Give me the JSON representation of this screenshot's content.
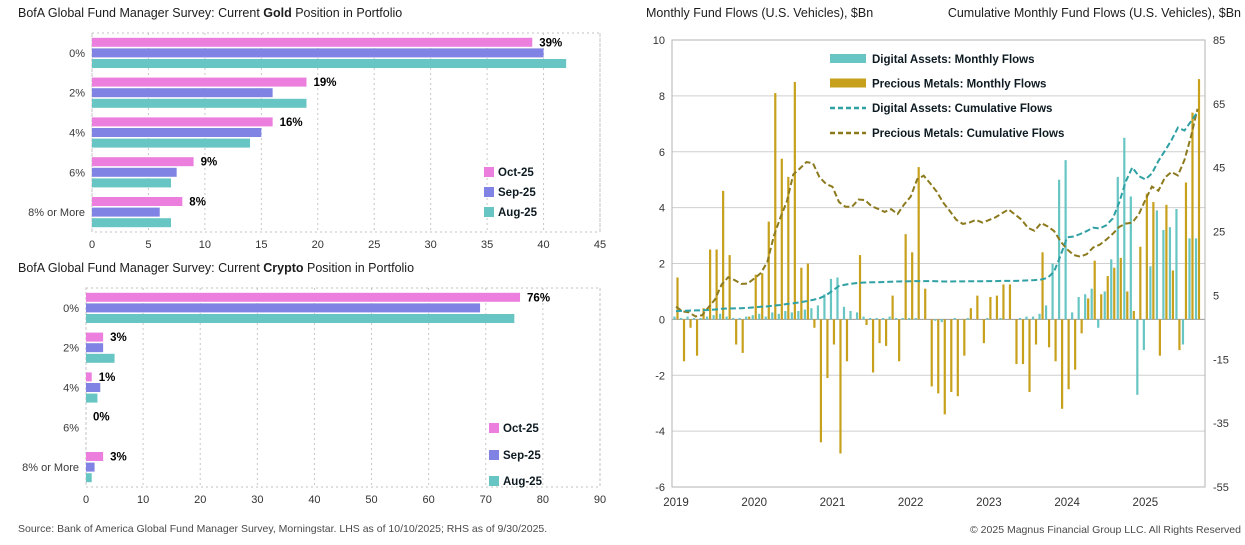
{
  "footer": {
    "source": "Source: Bank of America Global Fund Manager Survey, Morningstar. LHS as of 10/10/2025; RHS as of 9/30/2025.",
    "copyright": "© 2025 Magnus Financial Group LLC. All Rights Reserved"
  },
  "chart_data": [
    {
      "type": "bar",
      "orientation": "horizontal",
      "title_prefix": "BofA Global Fund Manager Survey: Current ",
      "title_bold": "Gold",
      "title_suffix": " Position in Portfolio",
      "categories": [
        "0%",
        "2%",
        "4%",
        "6%",
        "8% or More"
      ],
      "series": [
        {
          "name": "Oct-25",
          "color": "#ec7ede",
          "values": [
            39,
            19,
            16,
            9,
            8
          ]
        },
        {
          "name": "Sep-25",
          "color": "#8083e3",
          "values": [
            40,
            16,
            15,
            7.5,
            6
          ]
        },
        {
          "name": "Aug-25",
          "color": "#67c6c3",
          "values": [
            42,
            19,
            14,
            7,
            7
          ]
        }
      ],
      "bar_labels": [
        "39%",
        "19%",
        "16%",
        "9%",
        "8%"
      ],
      "xlim": [
        0,
        45
      ],
      "xticks": [
        0,
        5,
        10,
        15,
        20,
        25,
        30,
        35,
        40,
        45
      ],
      "grid": "dashed"
    },
    {
      "type": "bar",
      "orientation": "horizontal",
      "title_prefix": "BofA Global Fund Manager Survey: Current ",
      "title_bold": "Crypto",
      "title_suffix": " Position in Portfolio",
      "categories": [
        "0%",
        "2%",
        "4%",
        "6%",
        "8% or More"
      ],
      "series": [
        {
          "name": "Oct-25",
          "color": "#ec7ede",
          "values": [
            76,
            3,
            1,
            0,
            3
          ]
        },
        {
          "name": "Sep-25",
          "color": "#8083e3",
          "values": [
            69,
            3,
            2.5,
            0,
            1.5
          ]
        },
        {
          "name": "Aug-25",
          "color": "#67c6c3",
          "values": [
            75,
            5,
            2,
            0,
            1
          ]
        }
      ],
      "bar_labels": [
        "76%",
        "3%",
        "1%",
        "0%",
        "3%"
      ],
      "xlim": [
        0,
        90
      ],
      "xticks": [
        0,
        10,
        20,
        30,
        40,
        50,
        60,
        70,
        80,
        90
      ],
      "grid": "dashed"
    },
    {
      "type": "bar+line",
      "title_left": "Monthly Fund Flows (U.S. Vehicles), $Bn",
      "title_right": "Cumulative Monthly Fund Flows (U.S. Vehicles), $Bn",
      "x_start": "2019-01",
      "x_end": "2025-09",
      "years": [
        2019,
        2020,
        2021,
        2022,
        2023,
        2024,
        2025
      ],
      "lhs_axis": {
        "min": -6,
        "max": 10,
        "ticks": [
          10,
          8,
          6,
          4,
          2,
          0,
          -2,
          -4,
          -6
        ]
      },
      "rhs_axis": {
        "min": -55,
        "max": 85,
        "ticks": [
          85,
          65,
          45,
          25,
          5,
          -15,
          -35,
          -55
        ]
      },
      "legend": [
        {
          "label": "Digital Assets: Monthly Flows",
          "style": "solid",
          "color": "#67c6c3"
        },
        {
          "label": "Precious Metals: Monthly Flows",
          "style": "solid",
          "color": "#c7a01c"
        },
        {
          "label": "Digital Assets: Cumulative Flows",
          "style": "dashed",
          "color": "#2fa0a4"
        },
        {
          "label": "Precious Metals: Cumulative Flows",
          "style": "dashed",
          "color": "#8c7a1e"
        }
      ],
      "series": [
        {
          "name": "Digital Assets: Monthly Flows",
          "type": "bar",
          "axis": "lhs",
          "color": "#67c6c3",
          "values": [
            0.1,
            0.05,
            0.1,
            0.05,
            0.05,
            0.1,
            0.15,
            0.2,
            0.1,
            0.05,
            0.05,
            0.1,
            0.15,
            0.2,
            0.1,
            0.25,
            0.2,
            0.3,
            0.25,
            0.3,
            0.35,
            0.4,
            0.5,
            0.9,
            1.45,
            1.5,
            0.45,
            0.3,
            0.25,
            0.1,
            0.05,
            0.05,
            0.05,
            0.1,
            0.05,
            0.05,
            0.05,
            0.05,
            0.0,
            0.0,
            -0.05,
            -0.1,
            0.0,
            0.05,
            0.0,
            0.05,
            0.0,
            0.0,
            0.05,
            0.0,
            0.05,
            0.0,
            0.0,
            0.05,
            0.1,
            0.1,
            0.2,
            0.5,
            2.0,
            5.0,
            5.7,
            0.25,
            0.8,
            0.9,
            1.1,
            -0.3,
            1.0,
            2.15,
            5.1,
            6.5,
            4.4,
            -2.7,
            -1.1,
            1.9,
            3.9,
            3.2,
            3.3,
            3.95,
            -0.9,
            2.9,
            2.9
          ]
        },
        {
          "name": "Precious Metals: Monthly Flows",
          "type": "bar",
          "axis": "lhs",
          "color": "#c7a01c",
          "values": [
            1.5,
            -1.5,
            -0.3,
            -1.3,
            0.4,
            2.5,
            2.5,
            4.6,
            2.3,
            -0.9,
            -1.2,
            0.1,
            1.6,
            1.65,
            3.5,
            8.1,
            5.75,
            5.1,
            8.5,
            1.85,
            2.0,
            -0.3,
            -4.4,
            -2.1,
            -0.9,
            -4.8,
            -1.5,
            0.0,
            2.3,
            -0.2,
            -1.9,
            -0.85,
            -0.95,
            0.85,
            -1.5,
            3.05,
            2.4,
            5.45,
            1.1,
            -2.4,
            -2.65,
            -3.4,
            -2.6,
            -2.75,
            -1.3,
            0.4,
            0.85,
            -0.85,
            0.8,
            0.85,
            1.25,
            1.25,
            -1.6,
            -1.6,
            -2.6,
            -0.9,
            2.4,
            -1.0,
            -1.5,
            -3.2,
            -2.5,
            -1.8,
            -0.5,
            0.75,
            2.1,
            0.9,
            1.55,
            1.85,
            2.2,
            1.0,
            0.3,
            2.6,
            4.5,
            4.2,
            -1.3,
            4.1,
            1.75,
            -1.1,
            4.9,
            7.4,
            8.6
          ]
        },
        {
          "name": "Digital Assets: Cumulative Flows",
          "type": "line",
          "axis": "rhs",
          "color": "#2fa0a4",
          "dashed": true,
          "cumulative_of": "Digital Assets: Monthly Flows"
        },
        {
          "name": "Precious Metals: Cumulative Flows",
          "type": "line",
          "axis": "rhs",
          "color": "#8c7a1e",
          "dashed": true,
          "cumulative_of": "Precious Metals: Monthly Flows"
        }
      ]
    }
  ]
}
